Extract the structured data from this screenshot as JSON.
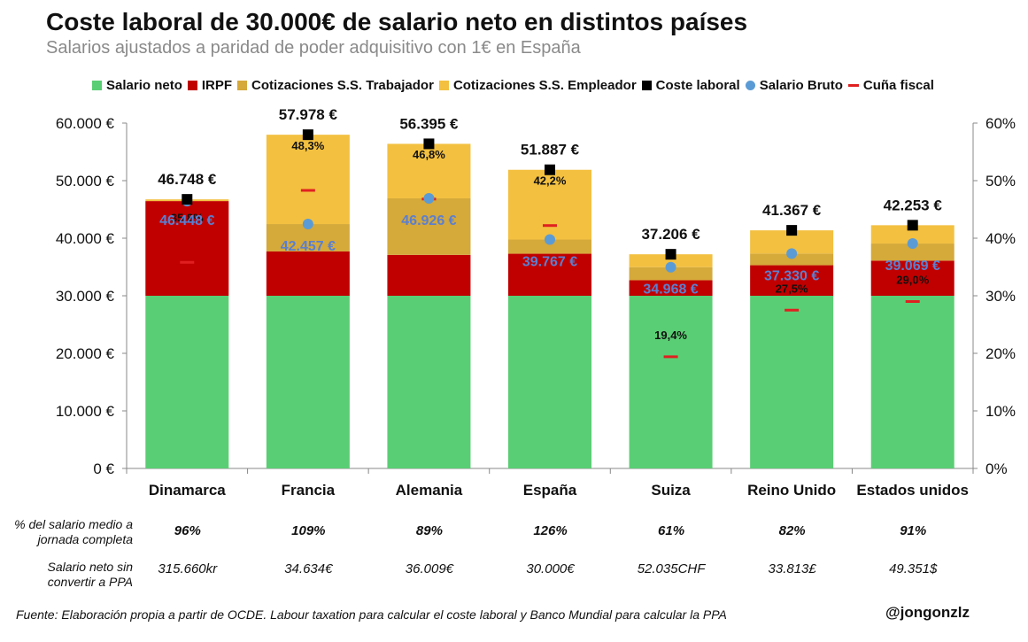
{
  "title": "Coste laboral de 30.000€ de salario neto en distintos países",
  "subtitle": "Salarios ajustados a paridad de poder adquisitivo con 1€ en España",
  "legend": [
    {
      "label": "Salario neto",
      "color": "#5ace74",
      "shape": "square"
    },
    {
      "label": "IRPF",
      "color": "#c00000",
      "shape": "square"
    },
    {
      "label": "Cotizaciones S.S. Trabajador",
      "color": "#d5a93a",
      "shape": "square"
    },
    {
      "label": "Cotizaciones S.S. Empleador",
      "color": "#f3c040",
      "shape": "square"
    },
    {
      "label": "Coste laboral",
      "color": "#000000",
      "shape": "square"
    },
    {
      "label": "Salario Bruto",
      "color": "#5b9bd5",
      "shape": "dot"
    },
    {
      "label": "Cuña fiscal",
      "color": "#e02020",
      "shape": "dash"
    }
  ],
  "chart_data": {
    "type": "bar",
    "stacked": true,
    "categories": [
      "Dinamarca",
      "Francia",
      "Alemania",
      "España",
      "Suiza",
      "Reino Unido",
      "Estados unidos"
    ],
    "series": [
      {
        "name": "Salario neto",
        "color": "#5ace74",
        "values": [
          30000,
          30000,
          30000,
          30000,
          30000,
          30000,
          30000
        ]
      },
      {
        "name": "IRPF",
        "color": "#c00000",
        "values": [
          16448,
          7700,
          7100,
          7300,
          2700,
          5300,
          6100
        ]
      },
      {
        "name": "Cotizaciones S.S. Trabajador",
        "color": "#d5a93a",
        "values": [
          0,
          4757,
          9826,
          2467,
          2268,
          2030,
          2969
        ]
      },
      {
        "name": "Cotizaciones S.S. Empleador",
        "color": "#f3c040",
        "values": [
          300,
          15521,
          9469,
          12120,
          2238,
          4037,
          3184
        ]
      }
    ],
    "coste_laboral": [
      46748,
      57978,
      56395,
      51887,
      37206,
      41367,
      42253
    ],
    "coste_laboral_labels": [
      "46.748 €",
      "57.978 €",
      "56.395 €",
      "51.887 €",
      "37.206 €",
      "41.367 €",
      "42.253 €"
    ],
    "salario_bruto": [
      46448,
      42457,
      46926,
      39767,
      34968,
      37330,
      39069
    ],
    "salario_bruto_labels": [
      "46.448 €",
      "42.457 €",
      "46.926 €",
      "39.767 €",
      "34.968 €",
      "37.330 €",
      "39.069 €"
    ],
    "cuna_fiscal": [
      35.8,
      48.3,
      46.8,
      42.2,
      19.4,
      27.5,
      29.0
    ],
    "cuna_fiscal_labels": [
      "35,8%",
      "48,3%",
      "46,8%",
      "42,2%",
      "19,4%",
      "27,5%",
      "29,0%"
    ],
    "y_left": {
      "min": 0,
      "max": 60000,
      "ticks": [
        0,
        10000,
        20000,
        30000,
        40000,
        50000,
        60000
      ],
      "tick_labels": [
        "0 €",
        "10.000 €",
        "20.000 €",
        "30.000 €",
        "40.000 €",
        "50.000 €",
        "60.000 €"
      ]
    },
    "y_right": {
      "min": 0,
      "max": 60,
      "ticks": [
        0,
        10,
        20,
        30,
        40,
        50,
        60
      ],
      "tick_labels": [
        "0%",
        "10%",
        "20%",
        "30%",
        "40%",
        "50%",
        "60%"
      ]
    },
    "grid": false
  },
  "table": {
    "row1_label": "% del salario medio a jornada completa",
    "row1_values": [
      "96%",
      "109%",
      "89%",
      "126%",
      "61%",
      "82%",
      "91%"
    ],
    "row2_label": "Salario neto sin convertir a PPA",
    "row2_values": [
      "315.660kr",
      "34.634€",
      "36.009€",
      "30.000€",
      "52.035CHF",
      "33.813£",
      "49.351$"
    ]
  },
  "footer": "Fuente: Elaboración propia a partir de OCDE. Labour taxation para calcular el coste laboral y Banco Mundial para calcular la PPA",
  "handle": "@jongonzlz"
}
